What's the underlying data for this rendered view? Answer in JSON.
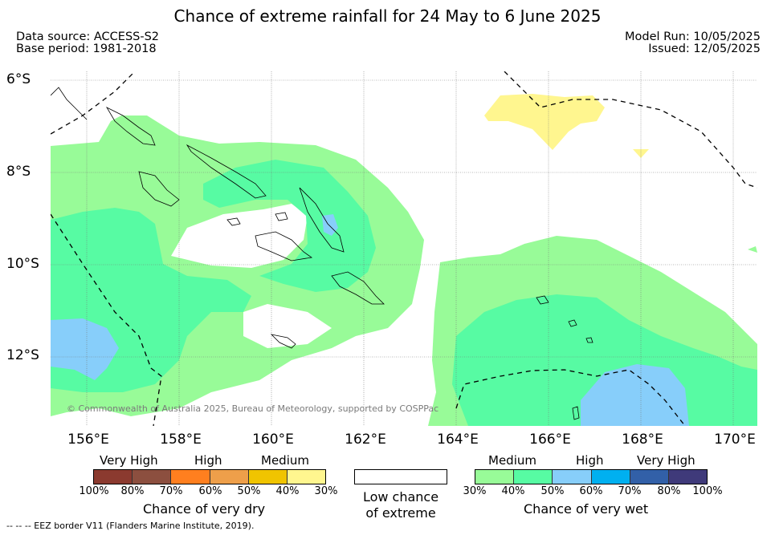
{
  "title": "Chance of extreme rainfall for 24 May to 6 June 2025",
  "meta": {
    "data_source": "Data source: ACCESS-S2",
    "base_period": "Base period: 1981-2018",
    "model_run": "Model Run: 10/05/2025",
    "issued": "Issued: 12/05/2025"
  },
  "map": {
    "lat_labels": [
      "6°S",
      "8°S",
      "10°S",
      "12°S"
    ],
    "lon_labels": [
      "156°E",
      "158°E",
      "160°E",
      "162°E",
      "164°E",
      "166°E",
      "168°E",
      "170°E"
    ],
    "copyright": "© Commonwealth of Australia 2025, Bureau of Meteorology, supported by COSPPac"
  },
  "legend_dry": {
    "heads": [
      "Very High",
      "High",
      "Medium"
    ],
    "ticks": [
      "100%",
      "80%",
      "70%",
      "60%",
      "50%",
      "40%",
      "30%"
    ],
    "label": "Chance of very dry",
    "colors": [
      "#8b3a2f",
      "#8c4f3f",
      "#ff7f1f",
      "#ee9f4a",
      "#f0c400",
      "#fff68f"
    ]
  },
  "legend_low": {
    "line1": "Low chance",
    "line2": "of extreme"
  },
  "legend_wet": {
    "heads": [
      "Medium",
      "High",
      "Very High"
    ],
    "ticks": [
      "30%",
      "40%",
      "50%",
      "60%",
      "70%",
      "80%",
      "100%"
    ],
    "label": "Chance of very wet",
    "colors": [
      "#98fb98",
      "#57fba3",
      "#87cefa",
      "#00b0f0",
      "#3260a8",
      "#3f3a7a"
    ]
  },
  "footer_note": "-- -- -- EEZ border V11 (Flanders Marine Institute, 2019)."
}
